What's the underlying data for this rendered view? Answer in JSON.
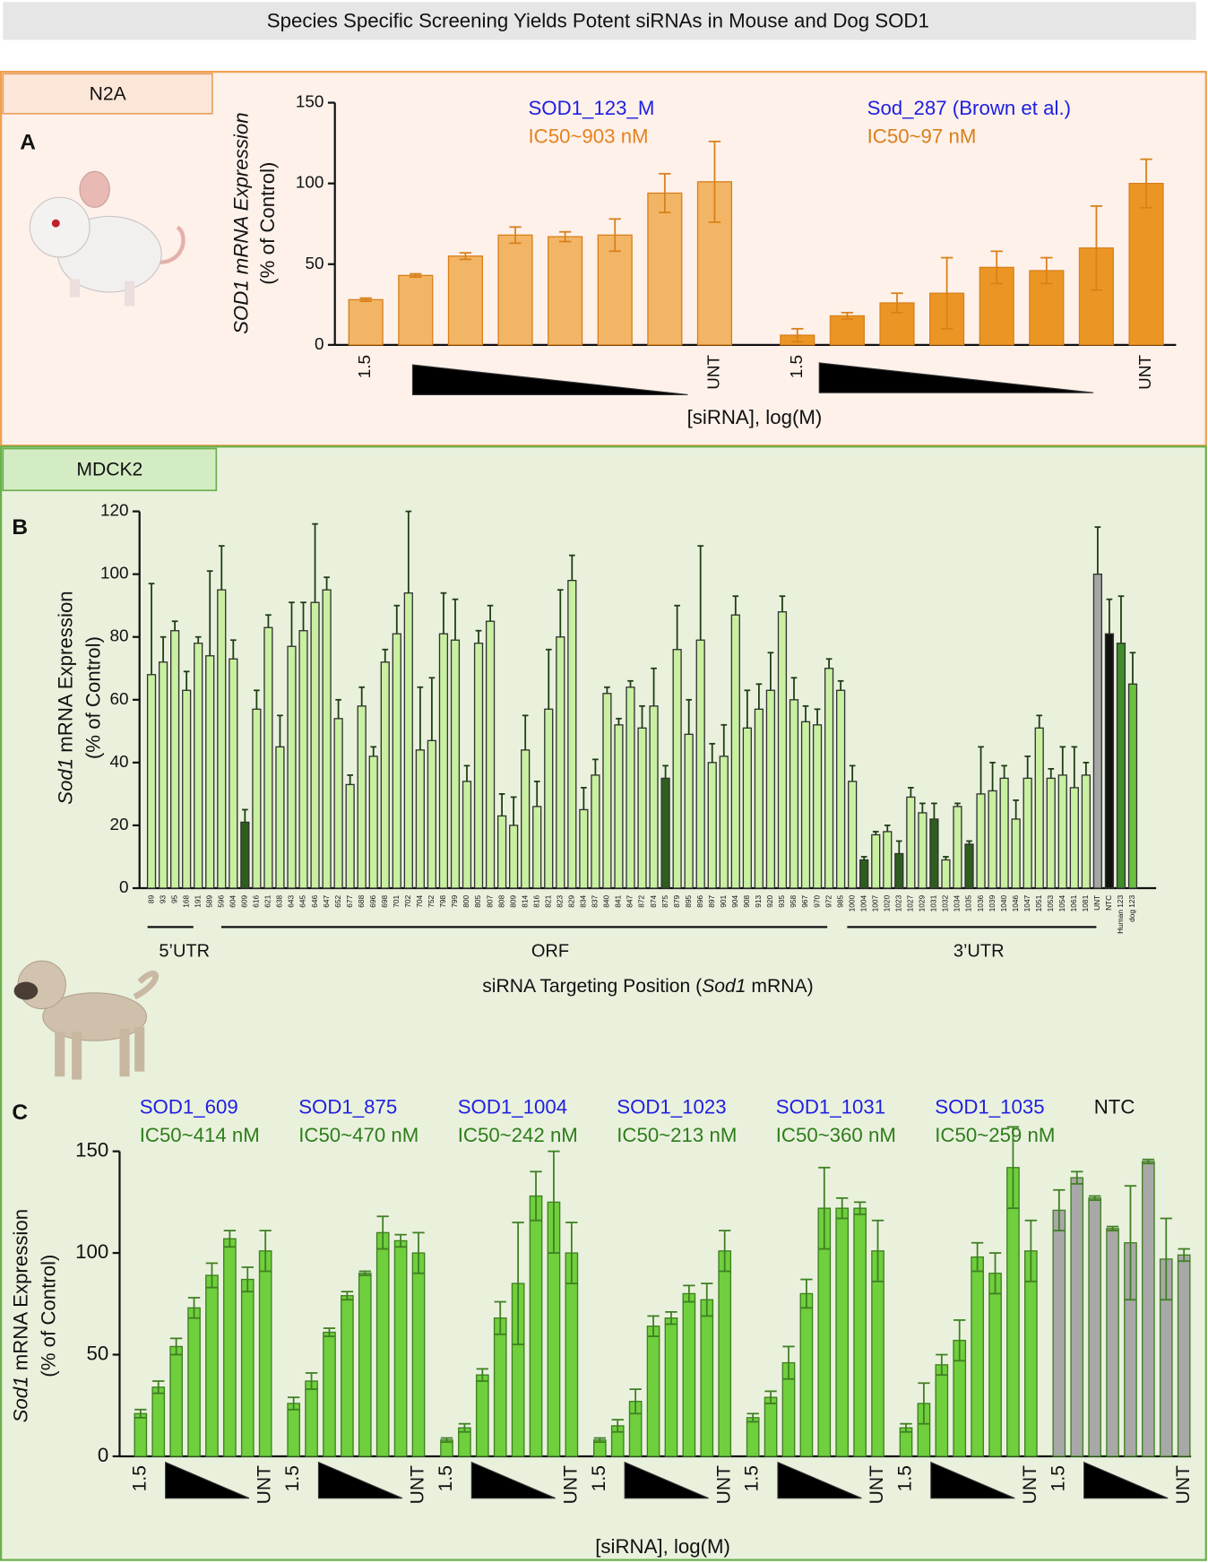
{
  "title": "Species Specific Screening Yields Potent siRNAs in Mouse and Dog SOD1",
  "chart_data": [
    {
      "type": "bar",
      "panel": "A",
      "cell_line": "N2A",
      "y_label_italic": "SOD1 mRNA Expression",
      "y_label_2": "(% of Control)",
      "x_label": "[siRNA], log(M)",
      "ylim": [
        0,
        150
      ],
      "yticks": [
        0,
        50,
        100,
        150
      ],
      "edge_color": "#d9801a",
      "categories": [
        "1.5",
        null,
        null,
        null,
        null,
        null,
        null,
        "UNT"
      ],
      "groups": [
        {
          "name": "SOD1_123_M",
          "name_color": "#1f1fe0",
          "ic50": "IC50~903 nM",
          "ic50_color": "#e6821e",
          "color": "#f2b566",
          "values": [
            28,
            43,
            55,
            68,
            67,
            68,
            94,
            101
          ],
          "errors": [
            1,
            1,
            2,
            5,
            3,
            10,
            12,
            25
          ]
        },
        {
          "name": "Sod_287 (Brown et al.)",
          "name_color": "#1f1fe0",
          "ic50": "IC50~97 nM",
          "ic50_color": "#d9801a",
          "color": "#eb9624",
          "values": [
            6,
            18,
            26,
            32,
            48,
            46,
            60,
            100
          ],
          "errors": [
            4,
            2,
            6,
            22,
            10,
            8,
            26,
            15
          ]
        }
      ]
    },
    {
      "type": "bar",
      "panel": "B",
      "cell_line": "MDCK2",
      "y_label_italic": "Sod1",
      "y_label": " mRNA Expression",
      "y_label_2": "(% of Control)",
      "x_label_1": "siRNA Targeting Position (",
      "x_label_italic": "Sod1",
      "x_label_2": " mRNA)",
      "regions": [
        "5’UTR",
        "ORF",
        "3’UTR"
      ],
      "ylim": [
        0,
        120
      ],
      "yticks": [
        0,
        20,
        40,
        60,
        80,
        100,
        120
      ],
      "edge_color": "#333333",
      "categories": [
        "89",
        "93",
        "95",
        "168",
        "191",
        "589",
        "596",
        "604",
        "609",
        "616",
        "621",
        "638",
        "643",
        "645",
        "646",
        "647",
        "652",
        "677",
        "688",
        "696",
        "698",
        "701",
        "702",
        "704",
        "752",
        "798",
        "799",
        "800",
        "805",
        "807",
        "808",
        "809",
        "814",
        "816",
        "821",
        "823",
        "829",
        "834",
        "837",
        "840",
        "841",
        "847",
        "872",
        "874",
        "875",
        "879",
        "895",
        "896",
        "897",
        "901",
        "904",
        "908",
        "913",
        "920",
        "935",
        "958",
        "967",
        "970",
        "972",
        "985",
        "1000",
        "1004",
        "1007",
        "1020",
        "1023",
        "1027",
        "1029",
        "1031",
        "1032",
        "1034",
        "1035",
        "1036",
        "1039",
        "1040",
        "1046",
        "1047",
        "1051",
        "1053",
        "1054",
        "1061",
        "1081",
        "UNT",
        "NTC",
        "Human 123",
        "dog 123"
      ],
      "values": [
        68,
        72,
        82,
        63,
        78,
        74,
        95,
        73,
        21,
        57,
        83,
        45,
        77,
        82,
        91,
        95,
        54,
        33,
        58,
        42,
        72,
        81,
        94,
        44,
        47,
        81,
        79,
        34,
        78,
        85,
        23,
        20,
        44,
        26,
        57,
        80,
        98,
        25,
        36,
        62,
        52,
        64,
        51,
        58,
        35,
        76,
        49,
        79,
        40,
        42,
        87,
        51,
        57,
        63,
        88,
        60,
        53,
        52,
        70,
        63,
        34,
        9,
        17,
        18,
        11,
        29,
        24,
        22,
        9,
        26,
        14,
        30,
        31,
        35,
        22,
        35,
        51,
        35,
        36,
        32,
        36,
        100,
        81,
        78,
        65
      ],
      "errors": [
        29,
        8,
        3,
        6,
        2,
        27,
        14,
        6,
        4,
        6,
        4,
        10,
        14,
        9,
        25,
        4,
        6,
        3,
        6,
        3,
        4,
        9,
        26,
        20,
        20,
        13,
        13,
        5,
        4,
        5,
        7,
        9,
        11,
        8,
        19,
        15,
        8,
        7,
        5,
        2,
        2,
        2,
        7,
        12,
        4,
        14,
        11,
        30,
        6,
        10,
        6,
        12,
        8,
        12,
        5,
        7,
        5,
        5,
        3,
        3,
        5,
        1,
        1,
        2,
        4,
        3,
        3,
        5,
        1,
        1,
        1,
        15,
        9,
        4,
        6,
        7,
        4,
        3,
        9,
        13,
        4,
        15,
        11,
        15,
        10
      ],
      "colors": [
        "#c8f0a0",
        "#c8f0a0",
        "#c8f0a0",
        "#c8f0a0",
        "#c8f0a0",
        "#c8f0a0",
        "#c8f0a0",
        "#c8f0a0",
        "#2e5e1e",
        "#c8f0a0",
        "#c8f0a0",
        "#c8f0a0",
        "#c8f0a0",
        "#c8f0a0",
        "#c8f0a0",
        "#c8f0a0",
        "#c8f0a0",
        "#c8f0a0",
        "#c8f0a0",
        "#c8f0a0",
        "#c8f0a0",
        "#c8f0a0",
        "#c8f0a0",
        "#c8f0a0",
        "#c8f0a0",
        "#c8f0a0",
        "#c8f0a0",
        "#c8f0a0",
        "#c8f0a0",
        "#c8f0a0",
        "#c8f0a0",
        "#c8f0a0",
        "#c8f0a0",
        "#c8f0a0",
        "#c8f0a0",
        "#c8f0a0",
        "#c8f0a0",
        "#c8f0a0",
        "#c8f0a0",
        "#c8f0a0",
        "#c8f0a0",
        "#c8f0a0",
        "#c8f0a0",
        "#c8f0a0",
        "#2e5e1e",
        "#c8f0a0",
        "#c8f0a0",
        "#c8f0a0",
        "#c8f0a0",
        "#c8f0a0",
        "#c8f0a0",
        "#c8f0a0",
        "#c8f0a0",
        "#c8f0a0",
        "#c8f0a0",
        "#c8f0a0",
        "#c8f0a0",
        "#c8f0a0",
        "#c8f0a0",
        "#c8f0a0",
        "#c8f0a0",
        "#2e5e1e",
        "#c8f0a0",
        "#c8f0a0",
        "#2e5e1e",
        "#c8f0a0",
        "#c8f0a0",
        "#2e5e1e",
        "#c8f0a0",
        "#c8f0a0",
        "#2e5e1e",
        "#c8f0a0",
        "#c8f0a0",
        "#c8f0a0",
        "#c8f0a0",
        "#c8f0a0",
        "#c8f0a0",
        "#c8f0a0",
        "#c8f0a0",
        "#c8f0a0",
        "#c8f0a0",
        "#a6a6a6",
        "#111111",
        "#3e8e2a",
        "#6cc040"
      ]
    },
    {
      "type": "bar",
      "panel": "C",
      "y_label_italic": "Sod1",
      "y_label": " mRNA Expression",
      "y_label_2": "(% of Control)",
      "x_label": "[siRNA], log(M)",
      "ylim": [
        0,
        150
      ],
      "yticks": [
        0,
        50,
        100,
        150
      ],
      "edge_color": "#3f7f22",
      "categories": [
        "1.5",
        null,
        null,
        null,
        null,
        null,
        null,
        "UNT"
      ],
      "groups": [
        {
          "name": "SOD1_609",
          "name_color": "#1f1fe0",
          "ic50": "IC50~414 nM",
          "ic50_color": "#2e7d1a",
          "color": "#6fcf3c",
          "values": [
            21,
            34,
            54,
            73,
            89,
            107,
            87,
            101
          ],
          "errors": [
            2,
            3,
            4,
            5,
            6,
            4,
            6,
            10
          ]
        },
        {
          "name": "SOD1_875",
          "name_color": "#1f1fe0",
          "ic50": "IC50~470 nM",
          "ic50_color": "#2e7d1a",
          "color": "#6fcf3c",
          "values": [
            26,
            37,
            61,
            79,
            90,
            110,
            106,
            100
          ],
          "errors": [
            3,
            4,
            2,
            2,
            1,
            8,
            3,
            10
          ]
        },
        {
          "name": "SOD1_1004",
          "name_color": "#1f1fe0",
          "ic50": "IC50~242 nM",
          "ic50_color": "#2e7d1a",
          "color": "#6fcf3c",
          "values": [
            8,
            14,
            40,
            68,
            85,
            128,
            125,
            100
          ],
          "errors": [
            1,
            2,
            3,
            8,
            30,
            12,
            25,
            15
          ]
        },
        {
          "name": "SOD1_1023",
          "name_color": "#1f1fe0",
          "ic50": "IC50~213 nM",
          "ic50_color": "#2e7d1a",
          "color": "#6fcf3c",
          "values": [
            8,
            15,
            27,
            64,
            68,
            80,
            77,
            101
          ],
          "errors": [
            1,
            3,
            6,
            5,
            3,
            4,
            8,
            10
          ]
        },
        {
          "name": "SOD1_1031",
          "name_color": "#1f1fe0",
          "ic50": "IC50~360 nM",
          "ic50_color": "#2e7d1a",
          "color": "#6fcf3c",
          "values": [
            19,
            29,
            46,
            80,
            122,
            122,
            122,
            101
          ],
          "errors": [
            2,
            3,
            8,
            7,
            20,
            5,
            3,
            15
          ]
        },
        {
          "name": "SOD1_1035",
          "name_color": "#1f1fe0",
          "ic50": "IC50~259 nM",
          "ic50_color": "#2e7d1a",
          "color": "#6fcf3c",
          "values": [
            14,
            26,
            45,
            57,
            98,
            90,
            142,
            101
          ],
          "errors": [
            2,
            10,
            5,
            10,
            7,
            10,
            20,
            15
          ]
        },
        {
          "name": "NTC",
          "name_color": "#111111",
          "color": "#a8a8a8",
          "values": [
            121,
            137,
            127,
            112,
            105,
            145,
            97,
            99
          ],
          "errors": [
            10,
            3,
            1,
            1,
            28,
            1,
            20,
            3
          ]
        }
      ]
    }
  ]
}
